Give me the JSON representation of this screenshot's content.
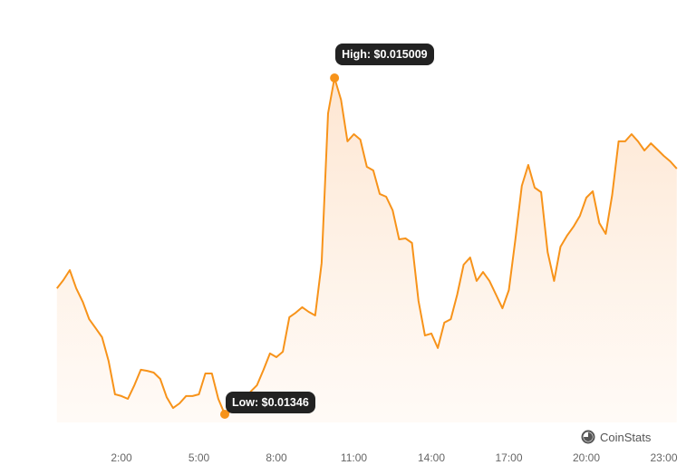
{
  "chart_data": {
    "type": "area",
    "title": "",
    "xlabel": "",
    "ylabel": "",
    "start_hour": -0.5,
    "step_hours": 0.25,
    "values": [
      0.01404,
      0.014078,
      0.014124,
      0.01404,
      0.013978,
      0.013898,
      0.013857,
      0.013815,
      0.013706,
      0.013552,
      0.013544,
      0.013531,
      0.013594,
      0.013665,
      0.01366,
      0.013652,
      0.013623,
      0.013539,
      0.013489,
      0.01351,
      0.013544,
      0.013544,
      0.013552,
      0.013648,
      0.013648,
      0.013531,
      0.01346,
      0.013473,
      0.013498,
      0.01351,
      0.013564,
      0.013594,
      0.013665,
      0.01374,
      0.013723,
      0.013748,
      0.013907,
      0.013928,
      0.013953,
      0.013932,
      0.013915,
      0.014157,
      0.014846,
      0.015009,
      0.014909,
      0.014717,
      0.01475,
      0.014725,
      0.0146,
      0.014583,
      0.014475,
      0.014462,
      0.014399,
      0.014266,
      0.01427,
      0.014249,
      0.013982,
      0.013823,
      0.013832,
      0.013765,
      0.013882,
      0.013898,
      0.014011,
      0.014149,
      0.014182,
      0.014074,
      0.014115,
      0.014074,
      0.014011,
      0.013948,
      0.014032,
      0.014262,
      0.014512,
      0.014608,
      0.014504,
      0.014483,
      0.014207,
      0.014074,
      0.014232,
      0.014282,
      0.014324,
      0.014374,
      0.014458,
      0.014487,
      0.014341,
      0.014291,
      0.01447,
      0.014717,
      0.014717,
      0.01475,
      0.014717,
      0.014675,
      0.014708,
      0.014679,
      0.01465,
      0.014625,
      0.014591
    ],
    "x_ticks": [
      {
        "hour": 2,
        "label": "2:00"
      },
      {
        "hour": 5,
        "label": "5:00"
      },
      {
        "hour": 8,
        "label": "8:00"
      },
      {
        "hour": 11,
        "label": "11:00"
      },
      {
        "hour": 14,
        "label": "14:00"
      },
      {
        "hour": 17,
        "label": "17:00"
      },
      {
        "hour": 20,
        "label": "20:00"
      },
      {
        "hour": 23,
        "label": "23:00"
      }
    ],
    "high": {
      "index": 43,
      "value": 0.015009,
      "label": "High: $0.015009"
    },
    "low": {
      "index": 26,
      "value": 0.01346,
      "label": "Low: $0.01346"
    },
    "grid": false,
    "line_color": "#f7931a",
    "fill_color": "#fde8d4"
  },
  "brand": {
    "name": "CoinStats"
  }
}
